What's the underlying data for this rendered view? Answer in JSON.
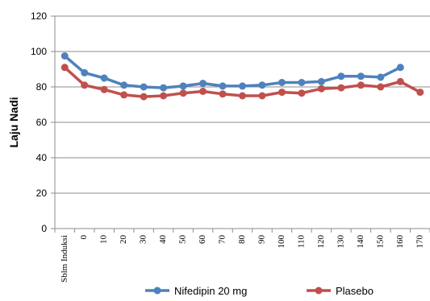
{
  "chart_data": {
    "type": "line",
    "title": "",
    "xlabel": "",
    "ylabel": "Laju Nadi",
    "ylim": [
      0,
      120
    ],
    "yticks": [
      "0",
      "20",
      "40",
      "60",
      "80",
      "100",
      "120"
    ],
    "grid": true,
    "legend_position": "bottom",
    "categories": [
      "Sblm Induksi",
      "0",
      "10",
      "20",
      "30",
      "40",
      "50",
      "60",
      "70",
      "80",
      "90",
      "100",
      "110",
      "120",
      "130",
      "140",
      "150",
      "160",
      "170"
    ],
    "series": [
      {
        "name": "Nifedipin 20 mg",
        "color": "#4F81BD",
        "values": [
          97.5,
          88,
          85,
          81,
          80,
          79.5,
          80.5,
          82,
          80.5,
          80.5,
          81,
          82.5,
          82.5,
          83,
          86,
          86,
          85.5,
          91,
          null
        ]
      },
      {
        "name": "Plasebo",
        "color": "#C0504D",
        "values": [
          91,
          81,
          78.5,
          75.5,
          74.5,
          75,
          76.5,
          77.5,
          76,
          75,
          75,
          77,
          76.5,
          79,
          79.5,
          81,
          80,
          83,
          77
        ]
      }
    ]
  }
}
